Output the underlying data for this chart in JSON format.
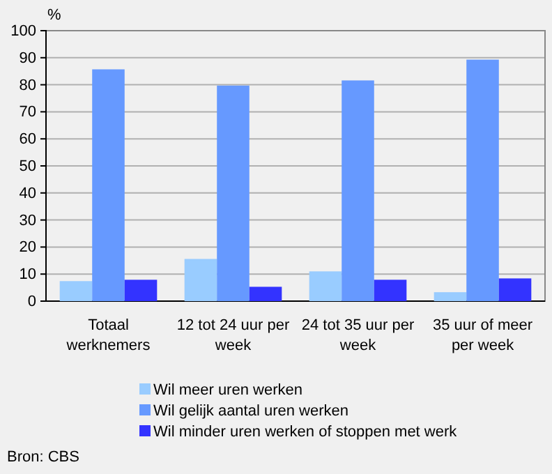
{
  "chart_data": {
    "type": "bar",
    "ylabel": "%",
    "categories": [
      "Totaal werknemers",
      "12 tot 24 uur per week",
      "24 tot 35 uur per week",
      "35 uur of meer per week"
    ],
    "series": [
      {
        "name": "Wil meer uren werken",
        "color": "#99ccff",
        "values": [
          7.4,
          15.6,
          11.0,
          3.3
        ]
      },
      {
        "name": "Wil gelijk aantal uren werken",
        "color": "#6699ff",
        "values": [
          85.7,
          79.7,
          81.6,
          89.3
        ]
      },
      {
        "name": "Wil minder uren werken of stoppen met werk",
        "color": "#3333ff",
        "values": [
          7.9,
          5.3,
          7.9,
          8.4
        ]
      }
    ],
    "ylim": [
      0,
      100
    ],
    "yticks": [
      0,
      10,
      20,
      30,
      40,
      50,
      60,
      70,
      80,
      90,
      100
    ],
    "grid": "y",
    "legend": "bottom",
    "annotations": [
      "Bron: CBS"
    ]
  }
}
